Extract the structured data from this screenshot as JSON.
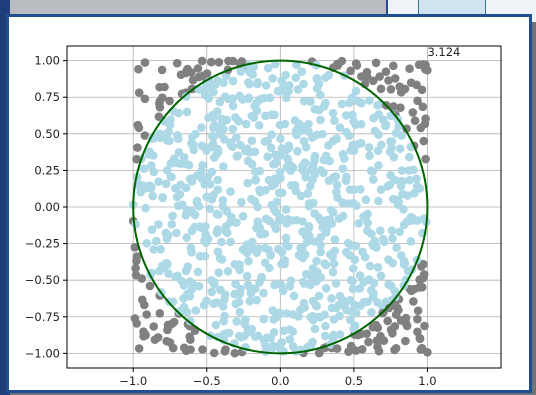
{
  "chart_data": {
    "type": "scatter",
    "title": "",
    "xlabel": "",
    "ylabel": "",
    "xlim": [
      -1.45,
      1.5
    ],
    "ylim": [
      -1.1,
      1.1
    ],
    "xticks": [
      "−1.0",
      "−0.5",
      "0.0",
      "0.5",
      "1.0"
    ],
    "xtick_values": [
      -1.0,
      -0.5,
      0.0,
      0.5,
      1.0
    ],
    "yticks": [
      "1.00",
      "0.75",
      "0.50",
      "0.25",
      "0.00",
      "−0.25",
      "−0.50",
      "−0.75",
      "−1.00"
    ],
    "ytick_values": [
      1.0,
      0.75,
      0.5,
      0.25,
      0.0,
      -0.25,
      -0.5,
      -0.75,
      -1.0
    ],
    "grid": true,
    "annotation": "3.124",
    "annotation_xy": [
      1.0,
      1.03
    ],
    "circle": {
      "center": [
        0,
        0
      ],
      "radius": 1.0,
      "color": "#006400"
    },
    "series": [
      {
        "role": "inside-unit-circle",
        "color": "#add8e6",
        "seed": 12345,
        "count_approx": 780
      },
      {
        "role": "outside-unit-circle",
        "color": "#808080",
        "seed": 12345,
        "count_approx": 220
      }
    ],
    "sample_count": 1000,
    "sampling_domain": {
      "x": [
        -1.0,
        1.0
      ],
      "y": [
        -1.0,
        1.0
      ]
    }
  }
}
